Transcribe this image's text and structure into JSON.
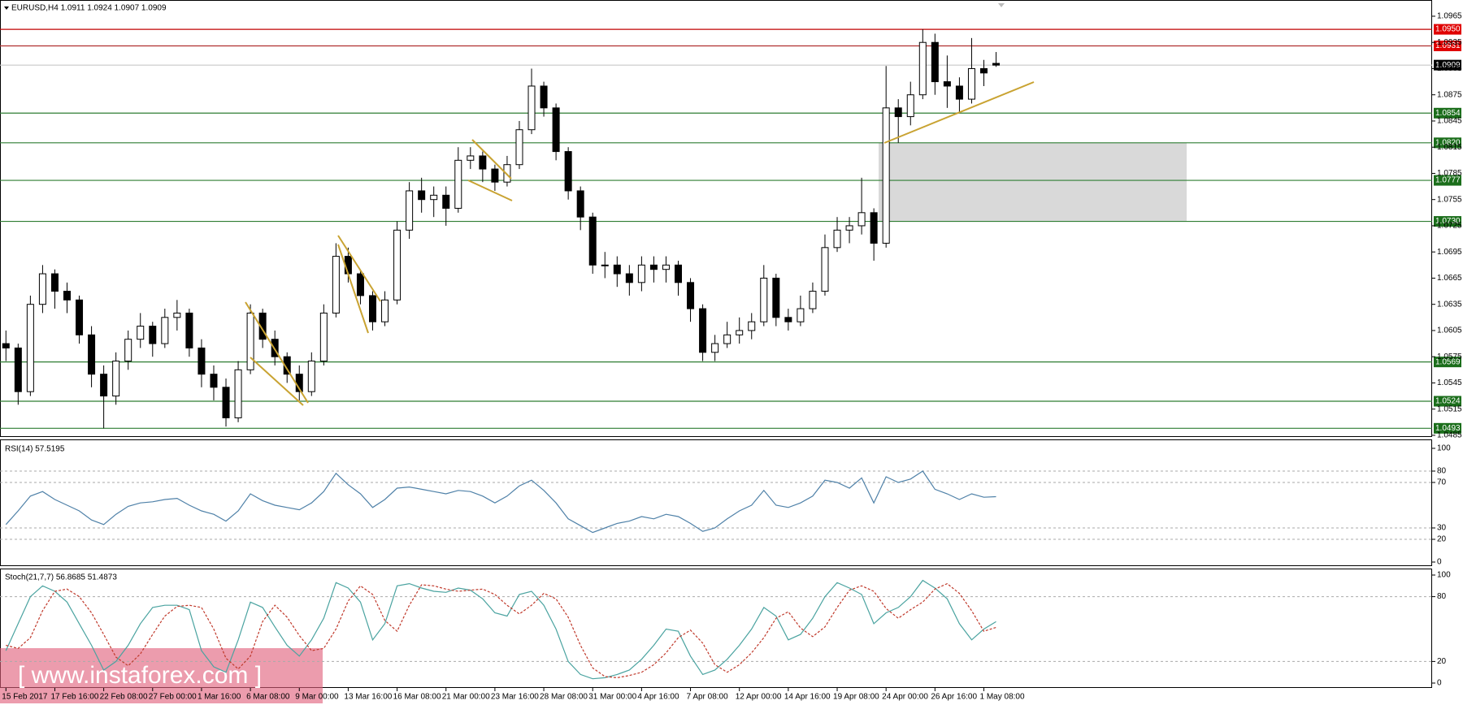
{
  "chart_data": [
    {
      "type": "candlestick",
      "title": "EURUSD,H4  1.0911 1.0924 1.0907 1.0909",
      "categories": [
        "15 Feb 2017",
        null,
        null,
        null,
        "17 Feb 16:00",
        null,
        null,
        null,
        "22 Feb 08:00",
        null,
        null,
        null,
        "27 Feb 00:00",
        null,
        null,
        null,
        "1 Mar 16:00",
        null,
        null,
        null,
        "6 Mar 08:00",
        null,
        null,
        null,
        "9 Mar 00:00",
        null,
        null,
        null,
        "13 Mar 16:00",
        null,
        null,
        null,
        "16 Mar 08:00",
        null,
        null,
        null,
        "21 Mar 00:00",
        null,
        null,
        null,
        "23 Mar 16:00",
        null,
        null,
        null,
        "28 Mar 08:00",
        null,
        null,
        null,
        "31 Mar 00:00",
        null,
        null,
        null,
        "4 Apr 16:00",
        null,
        null,
        null,
        "7 Apr 08:00",
        null,
        null,
        null,
        "12 Apr 00:00",
        null,
        null,
        null,
        "14 Apr 16:00",
        null,
        null,
        null,
        "19 Apr 08:00",
        null,
        null,
        null,
        "24 Apr 00:00",
        null,
        null,
        null,
        "26 Apr 16:00",
        null,
        null,
        null,
        "1 May 08:00",
        null
      ],
      "open": [
        1.059,
        1.0585,
        1.0535,
        1.0635,
        1.067,
        1.065,
        1.064,
        1.06,
        1.0555,
        1.053,
        1.057,
        1.0595,
        1.061,
        1.059,
        1.062,
        1.0625,
        1.0585,
        1.0555,
        1.054,
        1.0505,
        1.056,
        1.0625,
        1.0595,
        1.0575,
        1.0555,
        1.0535,
        1.057,
        1.0625,
        1.069,
        1.067,
        1.0645,
        1.0615,
        1.064,
        1.072,
        1.0765,
        1.0755,
        1.076,
        1.0745,
        1.08,
        1.0805,
        1.079,
        1.0775,
        1.0795,
        1.0835,
        1.0885,
        1.086,
        1.081,
        1.0765,
        1.0735,
        1.068,
        1.068,
        1.067,
        1.066,
        1.068,
        1.0675,
        1.068,
        1.066,
        1.063,
        1.058,
        1.059,
        1.06,
        1.0605,
        1.0615,
        1.0665,
        1.062,
        1.0615,
        1.063,
        1.065,
        1.07,
        1.072,
        1.0725,
        1.074,
        1.0705,
        1.086,
        1.085,
        1.0875,
        1.0935,
        1.089,
        1.0885,
        1.087,
        1.0905,
        1.0911
      ],
      "high": [
        1.0605,
        1.059,
        1.0645,
        1.068,
        1.0675,
        1.066,
        1.0645,
        1.061,
        1.0565,
        1.058,
        1.0605,
        1.0625,
        1.0615,
        1.063,
        1.064,
        1.063,
        1.0595,
        1.0565,
        1.055,
        1.057,
        1.0635,
        1.063,
        1.0605,
        1.058,
        1.0565,
        1.058,
        1.0635,
        1.0705,
        1.07,
        1.0675,
        1.065,
        1.065,
        1.073,
        1.0775,
        1.078,
        1.077,
        1.077,
        1.0815,
        1.0815,
        1.081,
        1.0795,
        1.0805,
        1.0845,
        1.0905,
        1.089,
        1.0865,
        1.0815,
        1.077,
        1.074,
        1.0695,
        1.069,
        1.068,
        1.069,
        1.069,
        1.069,
        1.0685,
        1.0665,
        1.0635,
        1.06,
        1.0615,
        1.062,
        1.0625,
        1.068,
        1.067,
        1.063,
        1.0645,
        1.066,
        1.0715,
        1.0735,
        1.0735,
        1.078,
        1.0745,
        1.0908,
        1.087,
        1.089,
        1.095,
        1.0945,
        1.092,
        1.0895,
        1.094,
        1.0915,
        1.0924
      ],
      "low": [
        1.057,
        1.052,
        1.053,
        1.0625,
        1.063,
        1.0625,
        1.059,
        1.054,
        1.0493,
        1.052,
        1.056,
        1.0585,
        1.0575,
        1.0585,
        1.0605,
        1.0575,
        1.054,
        1.0525,
        1.0495,
        1.05,
        1.0555,
        1.0585,
        1.0565,
        1.0545,
        1.0525,
        1.053,
        1.0565,
        1.062,
        1.066,
        1.0635,
        1.0605,
        1.061,
        1.0635,
        1.071,
        1.074,
        1.0735,
        1.0725,
        1.074,
        1.079,
        1.0775,
        1.0765,
        1.077,
        1.079,
        1.083,
        1.085,
        1.08,
        1.0755,
        1.072,
        1.067,
        1.0665,
        1.0655,
        1.0645,
        1.065,
        1.066,
        1.066,
        1.0645,
        1.0615,
        1.057,
        1.057,
        1.0585,
        1.059,
        1.0595,
        1.061,
        1.061,
        1.0605,
        1.061,
        1.0625,
        1.0645,
        1.0695,
        1.0705,
        1.0715,
        1.0685,
        1.07,
        1.082,
        1.084,
        1.087,
        1.0875,
        1.086,
        1.0855,
        1.0865,
        1.0885,
        1.0907
      ],
      "close": [
        1.0585,
        1.0535,
        1.0635,
        1.067,
        1.065,
        1.064,
        1.06,
        1.0555,
        1.053,
        1.057,
        1.0595,
        1.061,
        1.059,
        1.062,
        1.0625,
        1.0585,
        1.0555,
        1.054,
        1.0505,
        1.056,
        1.0625,
        1.0595,
        1.0575,
        1.0555,
        1.0535,
        1.057,
        1.0625,
        1.069,
        1.067,
        1.0645,
        1.0615,
        1.064,
        1.072,
        1.0765,
        1.0755,
        1.076,
        1.0745,
        1.08,
        1.0805,
        1.079,
        1.0775,
        1.0795,
        1.0835,
        1.0885,
        1.086,
        1.081,
        1.0765,
        1.0735,
        1.068,
        1.068,
        1.067,
        1.066,
        1.068,
        1.0675,
        1.068,
        1.066,
        1.063,
        1.058,
        1.059,
        1.06,
        1.0605,
        1.0615,
        1.0665,
        1.062,
        1.0615,
        1.063,
        1.065,
        1.07,
        1.072,
        1.0725,
        1.074,
        1.0705,
        1.086,
        1.085,
        1.0875,
        1.0935,
        1.089,
        1.0885,
        1.087,
        1.0905,
        1.09,
        1.0909
      ],
      "up_color": "#ffffff",
      "down_color": "#000000",
      "ylim": [
        1.0484,
        1.0978
      ],
      "yticks": [
        1.0485,
        1.0515,
        1.0545,
        1.0575,
        1.0605,
        1.0635,
        1.0665,
        1.0695,
        1.0725,
        1.0755,
        1.0785,
        1.0815,
        1.0845,
        1.0875,
        1.0905,
        1.0935,
        1.0965
      ],
      "levels": [
        {
          "value": 1.095,
          "label": "1.0950",
          "color": "#c00000",
          "fill": "#e00000"
        },
        {
          "value": 1.0931,
          "label": "1.0931",
          "color": "#b03030",
          "fill": "#e00000"
        },
        {
          "value": 1.0909,
          "label": "1.0909",
          "color": "#c8c8c8",
          "fill": "#000000"
        },
        {
          "value": 1.0854,
          "label": "1.0854",
          "color": "#2e7d32",
          "fill": "#1b6e1b"
        },
        {
          "value": 1.082,
          "label": "1.0820",
          "color": "#2e7d32",
          "fill": "#1b6e1b"
        },
        {
          "value": 1.0777,
          "label": "1.0777",
          "color": "#2e7d32",
          "fill": "#1b6e1b"
        },
        {
          "value": 1.073,
          "label": "1.0730",
          "color": "#2e7d32",
          "fill": "#1b6e1b"
        },
        {
          "value": 1.0569,
          "label": "1.0569",
          "color": "#2e7d32",
          "fill": "#1b6e1b"
        },
        {
          "value": 1.0524,
          "label": "1.0524",
          "color": "#2e7d32",
          "fill": "#1b6e1b"
        },
        {
          "value": 1.0493,
          "label": "1.0493",
          "color": "#2e7d32",
          "fill": "#1b6e1b"
        }
      ],
      "zone": {
        "from": 1.073,
        "to": 1.082,
        "color": "#d9d9d9"
      },
      "trendline_color": "#c9a332",
      "watermark": "[ www.instaforex.com ]"
    },
    {
      "type": "line",
      "title": "RSI(14) 57.5195",
      "values": [
        33,
        45,
        58,
        62,
        55,
        50,
        45,
        37,
        33,
        42,
        49,
        52,
        53,
        55,
        56,
        50,
        45,
        42,
        36,
        45,
        60,
        54,
        50,
        48,
        46,
        52,
        62,
        78,
        68,
        60,
        48,
        55,
        65,
        66,
        64,
        62,
        60,
        63,
        62,
        58,
        52,
        58,
        67,
        72,
        63,
        52,
        38,
        32,
        26,
        30,
        34,
        36,
        40,
        38,
        42,
        40,
        34,
        27,
        30,
        38,
        45,
        50,
        63,
        50,
        48,
        52,
        58,
        72,
        70,
        65,
        74,
        52,
        75,
        70,
        73,
        80,
        64,
        60,
        55,
        60,
        57,
        57.5195
      ],
      "color": "#4f81a8",
      "ylim": [
        0,
        100
      ],
      "yticks": [
        0,
        20,
        30,
        70,
        80,
        100
      ],
      "grid_levels": [
        20,
        30,
        70,
        80
      ]
    },
    {
      "type": "line",
      "title": "Stoch(21,7,7) 56.8685 51.4873",
      "series": [
        {
          "color": "#4aa3a0",
          "dash": false,
          "values": [
            30,
            55,
            80,
            90,
            85,
            75,
            55,
            35,
            12,
            20,
            35,
            55,
            70,
            72,
            72,
            68,
            30,
            15,
            10,
            40,
            75,
            70,
            52,
            35,
            25,
            40,
            60,
            93,
            88,
            75,
            40,
            55,
            90,
            92,
            88,
            85,
            84,
            88,
            86,
            78,
            65,
            62,
            82,
            85,
            72,
            50,
            20,
            8,
            4,
            5,
            8,
            12,
            22,
            35,
            50,
            48,
            25,
            8,
            12,
            22,
            35,
            50,
            70,
            62,
            40,
            45,
            60,
            80,
            93,
            88,
            82,
            55,
            65,
            70,
            80,
            95,
            88,
            78,
            55,
            40,
            50,
            56.8685
          ]
        },
        {
          "color": "#c0392b",
          "dash": true,
          "values": [
            35,
            32,
            42,
            67,
            85,
            87,
            80,
            65,
            45,
            24,
            16,
            27,
            45,
            62,
            71,
            72,
            70,
            50,
            23,
            13,
            25,
            57,
            72,
            61,
            44,
            30,
            32,
            50,
            76,
            90,
            82,
            58,
            48,
            72,
            91,
            90,
            87,
            85,
            86,
            87,
            82,
            72,
            64,
            72,
            83,
            78,
            61,
            35,
            14,
            6,
            5,
            7,
            10,
            17,
            28,
            42,
            49,
            37,
            17,
            10,
            17,
            28,
            42,
            60,
            66,
            51,
            43,
            52,
            70,
            86,
            90,
            85,
            69,
            60,
            68,
            75,
            87,
            92,
            83,
            67,
            48,
            51.4873
          ]
        }
      ],
      "ylim": [
        0,
        100
      ],
      "yticks": [
        0,
        20,
        80,
        100
      ],
      "grid_levels": [
        20,
        80
      ]
    }
  ]
}
